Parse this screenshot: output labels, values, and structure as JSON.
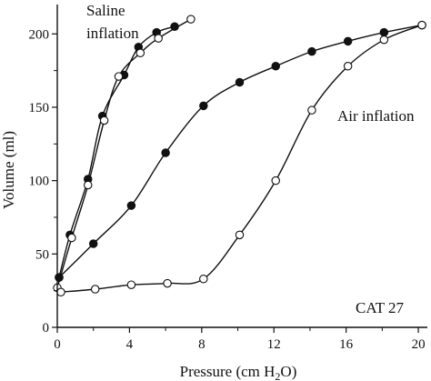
{
  "chart_data": {
    "type": "scatter",
    "xlabel": "Pressure (cm H",
    "xlabel_sub": "2",
    "xlabel_tail": "O)",
    "ylabel": "Volume (ml)",
    "xlim": [
      0,
      20.5
    ],
    "ylim": [
      0,
      220
    ],
    "x_ticks": [
      0,
      4,
      8,
      12,
      16,
      20
    ],
    "y_ticks": [
      0,
      50,
      100,
      150,
      200
    ],
    "grid": false,
    "annotations": {
      "saline_line1": "Saline",
      "saline_line2": "inflation",
      "air": "Air inflation",
      "id": "CAT 27"
    },
    "series": [
      {
        "marker": "filled",
        "x": [
          0.1,
          0.7,
          1.7,
          2.5,
          3.7,
          4.5,
          5.5,
          6.5
        ],
        "y": [
          34,
          63,
          101,
          144,
          172,
          191,
          201,
          205
        ]
      },
      {
        "marker": "open",
        "x": [
          0.0,
          0.8,
          1.7,
          2.6,
          3.4,
          4.6,
          5.6,
          7.4
        ],
        "y": [
          27,
          61,
          97,
          141,
          171,
          187,
          197,
          210
        ]
      },
      {
        "marker": "filled",
        "x": [
          0.1,
          2.0,
          4.1,
          6.0,
          8.1,
          10.1,
          12.1,
          14.1,
          16.1,
          18.1,
          20.2
        ],
        "y": [
          34,
          57,
          83,
          119,
          151,
          167,
          178,
          188,
          195,
          201,
          206
        ]
      },
      {
        "marker": "open",
        "x": [
          0.2,
          2.1,
          4.1,
          6.1,
          8.1,
          10.1,
          12.1,
          14.1,
          16.1,
          18.1,
          20.2
        ],
        "y": [
          24,
          26,
          29,
          30,
          33,
          63,
          100,
          148,
          178,
          196,
          206
        ]
      }
    ]
  }
}
